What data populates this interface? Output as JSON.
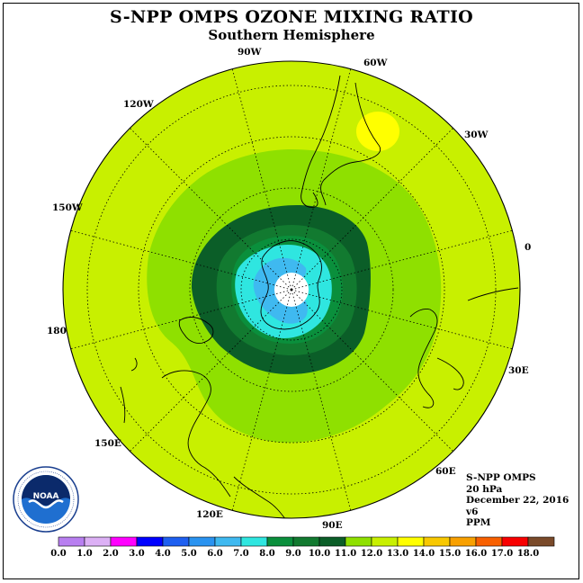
{
  "title": "S-NPP OMPS OZONE MIXING RATIO",
  "subtitle": "Southern Hemisphere",
  "longitude_labels": {
    "w90": "90W",
    "w60": "60W",
    "w30": "30W",
    "w120": "120W",
    "w150": "150W",
    "lon0": "0",
    "lon180": "180",
    "e30": "30E",
    "e60": "60E",
    "e90": "90E",
    "e120": "120E",
    "e150": "150E"
  },
  "info": {
    "instrument": "S-NPP OMPS",
    "pressure_level": "20 hPa",
    "date": "December 22, 2016",
    "version": "v6",
    "units": "PPM"
  },
  "logo_text": "NOAA",
  "colorbar": {
    "ticks": [
      "0.0",
      "1.0",
      "2.0",
      "3.0",
      "4.0",
      "5.0",
      "6.0",
      "7.0",
      "8.0",
      "9.0",
      "10.0",
      "11.0",
      "12.0",
      "13.0",
      "14.0",
      "15.0",
      "16.0",
      "17.0",
      "18.0"
    ],
    "colors": [
      "#b87ff0",
      "#dcb0f5",
      "#ff00ff",
      "#0000ff",
      "#1e5ff0",
      "#2a93f0",
      "#3fb9f0",
      "#2fe6e0",
      "#0a8f3c",
      "#127a30",
      "#0b5e28",
      "#8fe000",
      "#c8f000",
      "#ffff00",
      "#f8c800",
      "#f8a000",
      "#f86000",
      "#f80000",
      "#7a4a2a"
    ]
  },
  "map_colors": {
    "background_ring": "#c8f000",
    "level_11": "#8fe000",
    "level_10": "#0b5e28",
    "level_9": "#127a30",
    "level_8": "#0a8f3c",
    "level_7": "#2fe6e0",
    "level_6": "#3fb9f0",
    "pole_white": "#ffffff",
    "level_13": "#ffff00"
  }
}
